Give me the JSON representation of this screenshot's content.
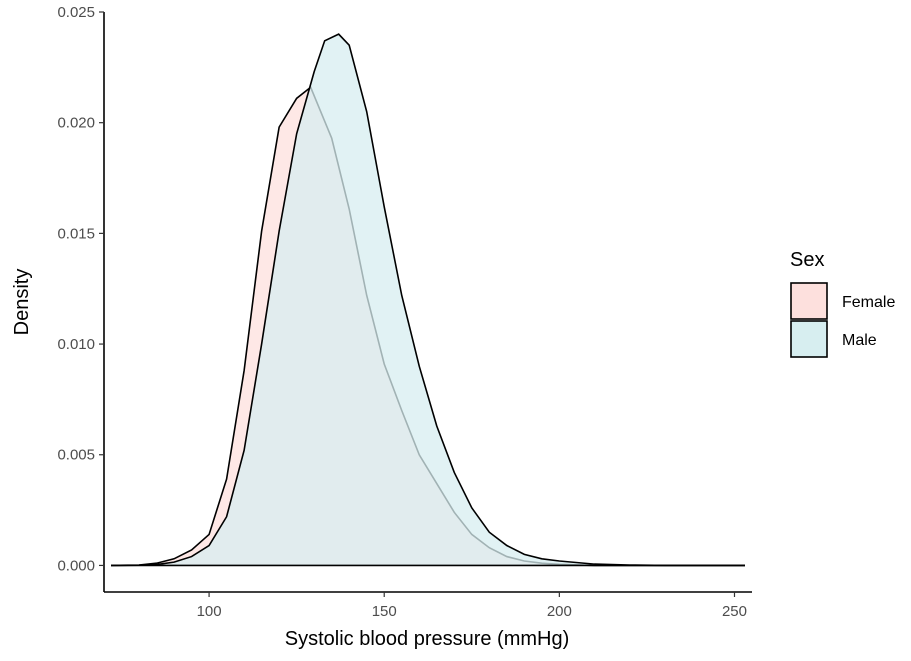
{
  "chart_data": {
    "type": "area",
    "subtype": "density",
    "xlabel": "Systolic blood pressure (mmHg)",
    "ylabel": "Density",
    "xlim": [
      70,
      255
    ],
    "ylim": [
      -0.0012,
      0.025
    ],
    "xticks": [
      100,
      150,
      200,
      250
    ],
    "yticks": [
      0.0,
      0.005,
      0.01,
      0.015,
      0.02,
      0.025
    ],
    "ytick_labels": [
      "0.000",
      "0.005",
      "0.010",
      "0.015",
      "0.020",
      "0.025"
    ],
    "grid": false,
    "legend": {
      "title": "Sex",
      "position": "right"
    },
    "series": [
      {
        "name": "Female",
        "fill": "#fde0dd",
        "stroke": "#000000",
        "x": [
          72,
          80,
          85,
          90,
          95,
          100,
          105,
          110,
          115,
          120,
          125,
          129,
          135,
          140,
          145,
          150,
          155,
          160,
          165,
          170,
          175,
          180,
          185,
          190,
          195,
          200,
          210,
          220,
          230,
          240,
          253
        ],
        "y": [
          0.0,
          2e-05,
          0.0001,
          0.0003,
          0.0007,
          0.0014,
          0.0039,
          0.0088,
          0.0151,
          0.0198,
          0.0211,
          0.0216,
          0.0193,
          0.0161,
          0.0122,
          0.0091,
          0.007,
          0.005,
          0.0037,
          0.0024,
          0.0014,
          0.0008,
          0.0004,
          0.0002,
          0.0001,
          5e-05,
          0.0,
          0.0,
          0.0,
          0.0,
          0.0
        ]
      },
      {
        "name": "Male",
        "fill": "#d7eef0",
        "stroke": "#000000",
        "x": [
          72,
          80,
          85,
          90,
          95,
          100,
          105,
          110,
          115,
          120,
          125,
          130,
          133,
          137,
          140,
          145,
          150,
          155,
          160,
          165,
          170,
          175,
          180,
          185,
          190,
          195,
          200,
          210,
          220,
          230,
          240,
          253
        ],
        "y": [
          0.0,
          1e-05,
          4e-05,
          0.00015,
          0.0004,
          0.0009,
          0.0022,
          0.0052,
          0.01,
          0.0151,
          0.0195,
          0.0223,
          0.0237,
          0.024,
          0.0235,
          0.0205,
          0.0162,
          0.0122,
          0.009,
          0.0063,
          0.0042,
          0.0026,
          0.0015,
          0.0009,
          0.0005,
          0.0003,
          0.0002,
          6e-05,
          2e-05,
          0.0,
          0.0,
          0.0
        ]
      }
    ]
  }
}
